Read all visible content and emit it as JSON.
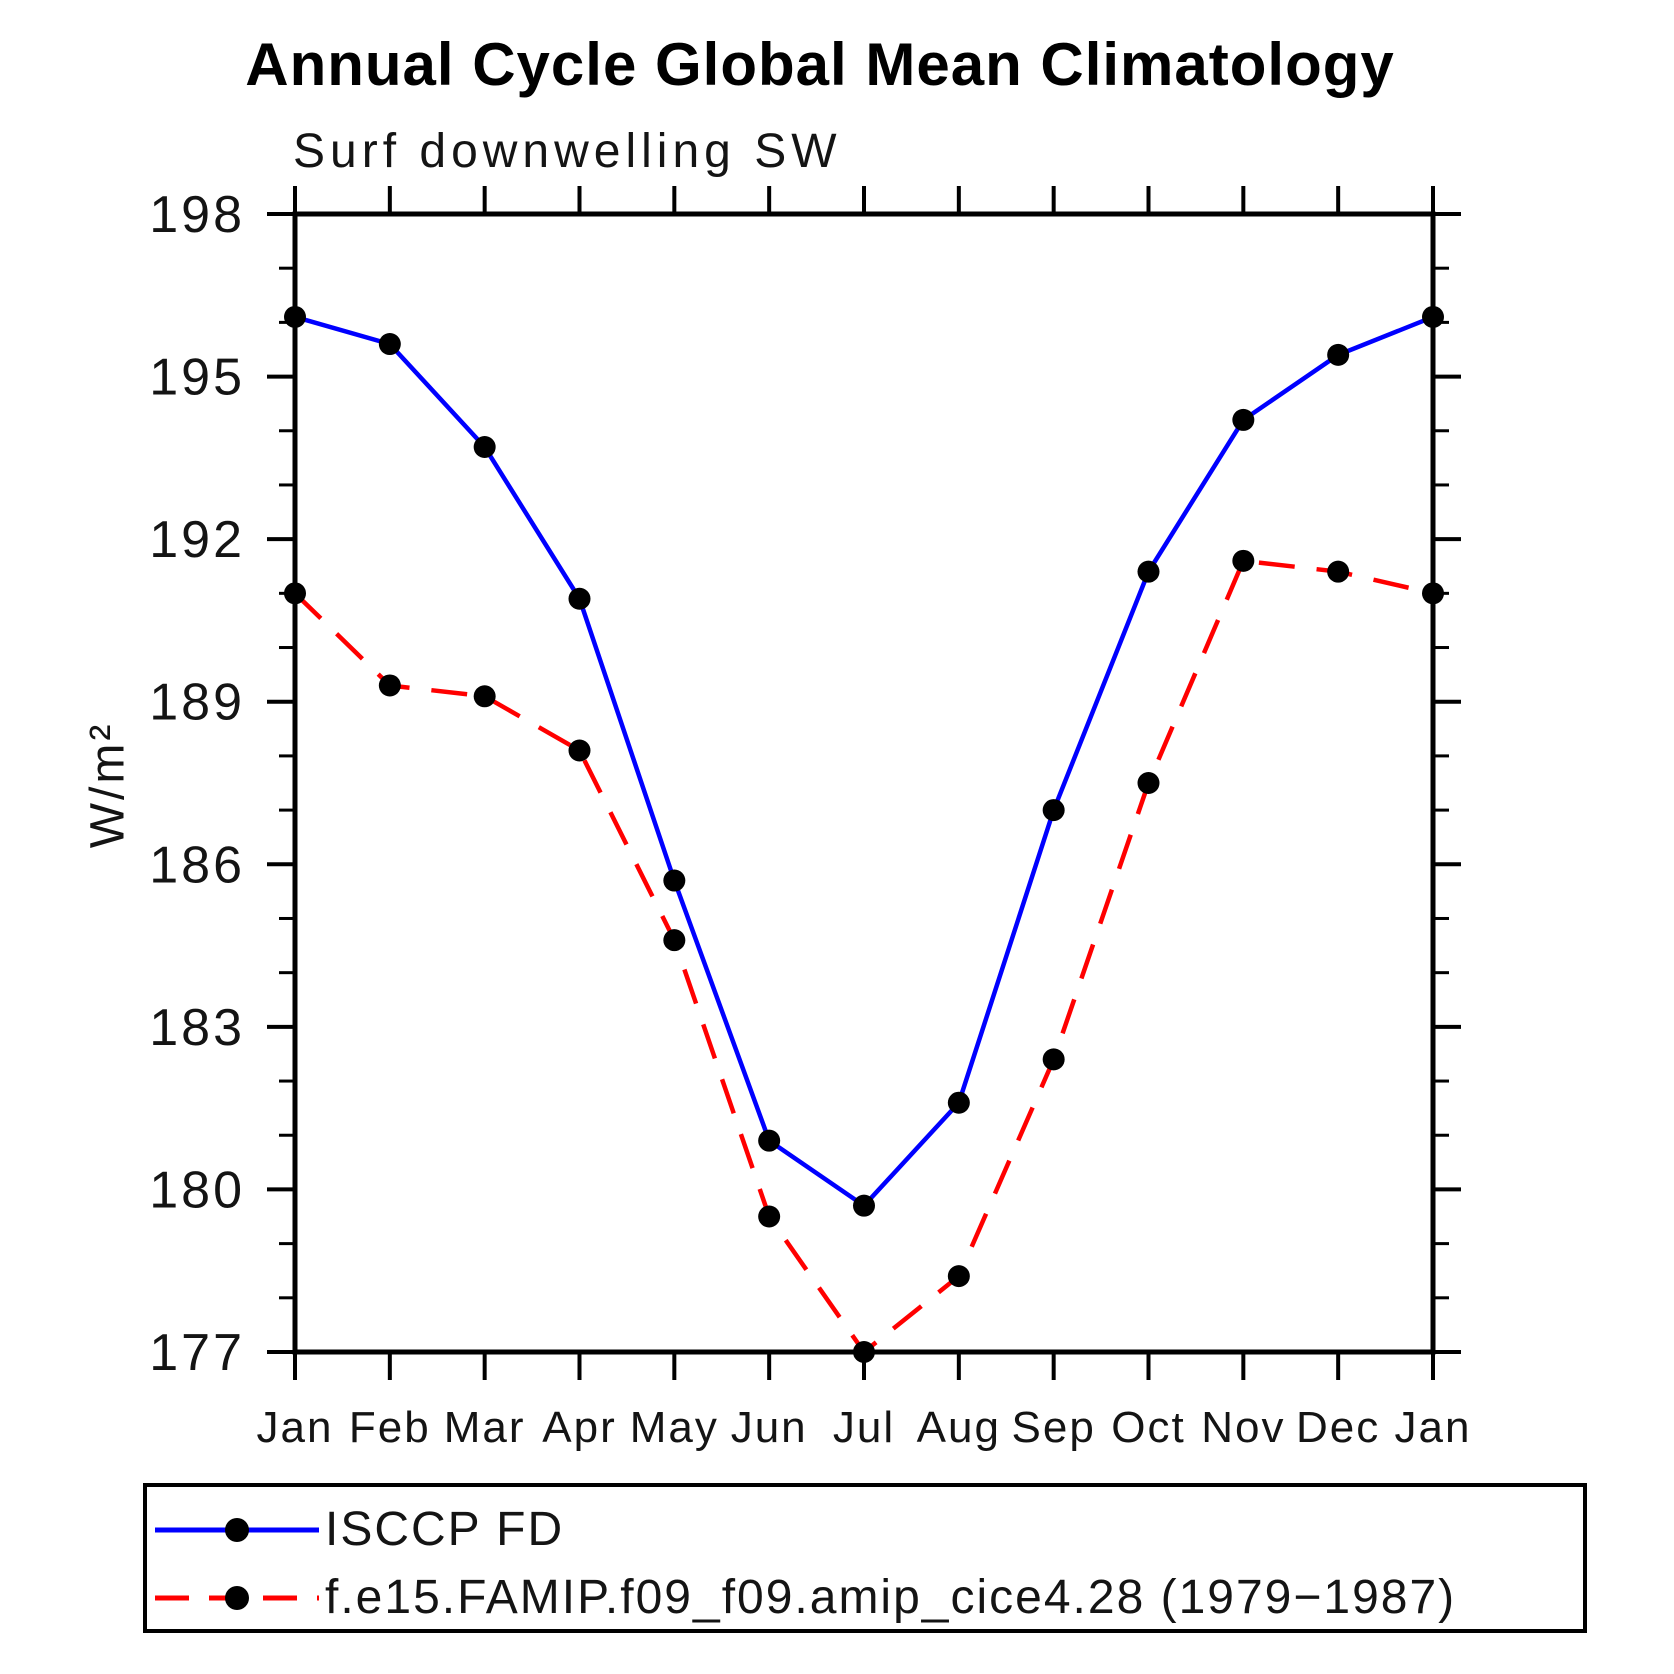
{
  "chart": {
    "title": "Annual Cycle Global Mean Climatology",
    "subtitle": "Surf downwelling SW"
  },
  "chart_data": {
    "type": "line",
    "title": "Annual Cycle Global Mean Climatology",
    "subtitle": "Surf downwelling SW",
    "ylabel": "W/m²",
    "xlabel": "",
    "categories": [
      "Jan",
      "Feb",
      "Mar",
      "Apr",
      "May",
      "Jun",
      "Jul",
      "Aug",
      "Sep",
      "Oct",
      "Nov",
      "Dec",
      "Jan"
    ],
    "ylim": [
      177,
      198
    ],
    "ytick_major_step": 3,
    "ytick_minor_step": 1,
    "grid": false,
    "legend_position": "bottom-left-box",
    "axis_color": "#000000",
    "marker_color": "#000000",
    "series": [
      {
        "name": "ISCCP FD",
        "color": "#0000ff",
        "style": "solid",
        "marker": "circle",
        "values": [
          196.1,
          195.6,
          193.7,
          190.9,
          185.7,
          180.9,
          179.7,
          181.6,
          187.0,
          191.4,
          194.2,
          195.4,
          196.1
        ]
      },
      {
        "name": "f.e15.FAMIP.f09_f09.amip_cice4.28 (1979−1987)",
        "color": "#ff0000",
        "style": "dashed",
        "marker": "circle",
        "values": [
          191.0,
          189.3,
          189.1,
          188.1,
          184.6,
          179.5,
          177.0,
          178.4,
          182.4,
          187.5,
          191.6,
          191.4,
          191.0
        ]
      }
    ]
  }
}
